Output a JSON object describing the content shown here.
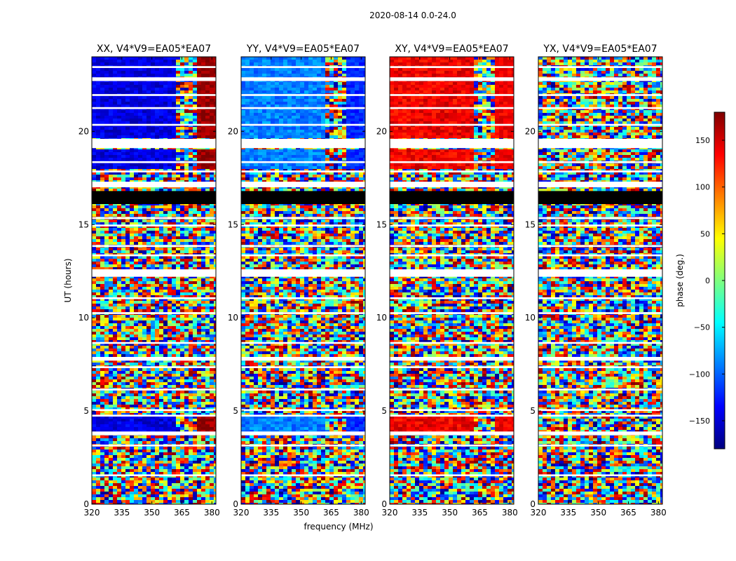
{
  "figure": {
    "suptitle": "2020-08-14 0.0-24.0",
    "xlabel": "frequency (MHz)",
    "ylabel": "UT (hours)"
  },
  "colorbar": {
    "label": "phase (deg.)",
    "range": [
      -180,
      180
    ],
    "ticks": [
      150,
      100,
      50,
      0,
      -50,
      -100,
      -150
    ],
    "tick_labels": [
      "150",
      "100",
      "50",
      "0",
      "−50",
      "−100",
      "−150"
    ],
    "colormap": [
      "#00007f",
      "#0000ff",
      "#007fff",
      "#00ffff",
      "#7fff7f",
      "#ffff00",
      "#ff7f00",
      "#ff0000",
      "#7f0000"
    ]
  },
  "chart_data": {
    "type": "heatmap",
    "description_units": "phase in degrees vs frequency (MHz) and UT (hours)",
    "xlim": [
      320,
      382
    ],
    "ylim": [
      0,
      24
    ],
    "xticks": [
      320,
      335,
      350,
      365,
      380
    ],
    "yticks": [
      0,
      5,
      10,
      15,
      20
    ],
    "panels": [
      {
        "title": "XX, V4*V9=EA05*EA07",
        "coherent_phase_deg": -145,
        "coherent_high_deg": 170
      },
      {
        "title": "YY, V4*V9=EA05*EA07",
        "coherent_phase_deg": -90,
        "coherent_high_deg": -120
      },
      {
        "title": "XY, V4*V9=EA05*EA07",
        "coherent_phase_deg": 140,
        "coherent_high_deg": 140
      },
      {
        "title": "YX, V4*V9=EA05*EA07",
        "coherent_phase_deg": null,
        "coherent_high_deg": null
      }
    ],
    "flagged_bands_hours": [
      [
        23.4,
        23.5
      ],
      [
        22.7,
        22.9
      ],
      [
        21.9,
        22.0
      ],
      [
        21.2,
        21.3
      ],
      [
        20.3,
        20.4
      ],
      [
        19.1,
        19.6
      ],
      [
        18.3,
        18.4
      ],
      [
        17.8,
        17.9
      ],
      [
        17.0,
        17.3
      ],
      [
        16.6,
        16.7
      ],
      [
        15.3,
        15.4
      ],
      [
        14.9,
        15.0
      ],
      [
        13.8,
        13.9
      ],
      [
        13.3,
        13.4
      ],
      [
        12.2,
        12.6
      ],
      [
        11.0,
        11.1
      ],
      [
        10.2,
        10.3
      ],
      [
        8.6,
        8.7
      ],
      [
        7.7,
        7.9
      ],
      [
        7.3,
        7.4
      ],
      [
        6.1,
        6.2
      ],
      [
        5.0,
        5.1
      ],
      [
        4.7,
        4.8
      ],
      [
        3.7,
        3.9
      ],
      [
        3.1,
        3.2
      ],
      [
        1.5,
        1.6
      ]
    ],
    "black_bands_hours": [
      [
        16.1,
        16.8
      ]
    ],
    "coherent_ranges_hours": [
      [
        19.6,
        24.0
      ],
      [
        18.0,
        19.1
      ],
      [
        3.9,
        4.7
      ]
    ]
  }
}
